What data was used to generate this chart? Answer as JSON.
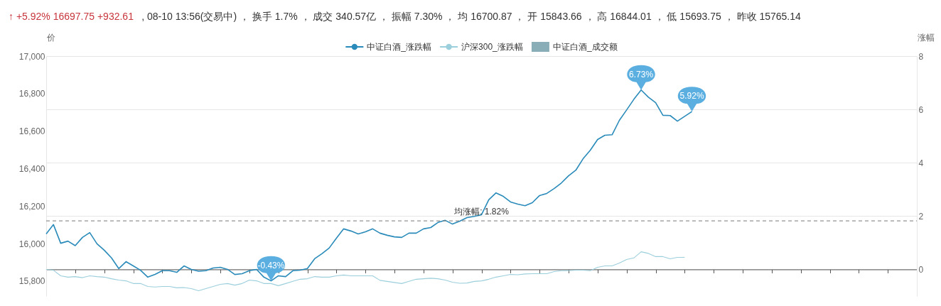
{
  "chart_data": {
    "type": "line",
    "ylabel": "价",
    "y2label": "涨幅",
    "annotations": [
      "↑ +5.92% 16697.75 +932.61",
      ", 08-10 13:56(交易中) ， 换手 1.7% ， 成交 340.57亿 ， 振幅 7.30% ， 均 16700.87 ， 开 15843.66 ， 高 16844.01 ， 低 15693.75 ， 昨收 15765.14"
    ],
    "categories": [
      null,
      null,
      null,
      null,
      null,
      null,
      null,
      null,
      null,
      null,
      null,
      null,
      null,
      null,
      null,
      null,
      null,
      null,
      null,
      null,
      null,
      null,
      null,
      null,
      null,
      null,
      null,
      null,
      null,
      null,
      null,
      null,
      null,
      null,
      null,
      null,
      null,
      null,
      null,
      null,
      null,
      null,
      null,
      null,
      null,
      null,
      null,
      null,
      null,
      null,
      null,
      null,
      null,
      null,
      null,
      null,
      null,
      null,
      null,
      null,
      null,
      null,
      null,
      null,
      null,
      null,
      null,
      null,
      null,
      null,
      null,
      null,
      null,
      null,
      null,
      null,
      null,
      null,
      null,
      null,
      null,
      null,
      null,
      null,
      null,
      null,
      null,
      null,
      null,
      null,
      null,
      null,
      null,
      null,
      null,
      null,
      null,
      null,
      null,
      null,
      null,
      null,
      null,
      null,
      null,
      null,
      null,
      null,
      null,
      null,
      null,
      null,
      null,
      null,
      null,
      null,
      null,
      null,
      null,
      null,
      null
    ],
    "series": [
      {
        "name": "中证白酒_涨跌幅",
        "axis": "y2",
        "color": "#2a8bba",
        "value_labels": [
          null,
          null,
          null,
          null,
          null,
          null,
          null,
          null,
          null,
          null,
          null,
          null,
          null,
          null,
          null,
          null,
          null,
          null,
          null,
          null,
          null,
          null,
          null,
          null,
          null,
          null,
          null,
          null,
          null,
          null,
          null,
          "-0.43%",
          null,
          null,
          null,
          null,
          null,
          null,
          null,
          null,
          null,
          null,
          null,
          null,
          null,
          null,
          null,
          null,
          null,
          null,
          null,
          null,
          null,
          null,
          null,
          null,
          null,
          null,
          null,
          null,
          null,
          null,
          null,
          null,
          null,
          null,
          null,
          null,
          null,
          null,
          null,
          null,
          null,
          null,
          null,
          null,
          null,
          null,
          null,
          null,
          null,
          null,
          "6.73%",
          null,
          null,
          null,
          null,
          null,
          null,
          "5.92%",
          null,
          null,
          null,
          null,
          null,
          null,
          null,
          null,
          null,
          null,
          null,
          null,
          null,
          null,
          null,
          null,
          null,
          null,
          null,
          null,
          null,
          null,
          null,
          null,
          null,
          null,
          null,
          null,
          null,
          null,
          null
        ],
        "values": [
          1.33,
          1.68,
          0.98,
          1.06,
          0.89,
          1.2,
          1.38,
          0.96,
          0.72,
          0.43,
          0.03,
          0.29,
          0.13,
          -0.03,
          -0.29,
          -0.19,
          -0.05,
          -0.05,
          -0.11,
          0.13,
          0,
          -0.07,
          -0.05,
          0.05,
          0.08,
          0,
          -0.19,
          -0.16,
          -0.05,
          0,
          -0.29,
          -0.43,
          -0.24,
          -0.27,
          -0.05,
          -0.03,
          0.03,
          0.4,
          0.59,
          0.8,
          1.17,
          1.52,
          1.44,
          1.33,
          1.41,
          1.52,
          1.36,
          1.28,
          1.22,
          1.2,
          1.36,
          1.36,
          1.52,
          1.57,
          1.76,
          1.84,
          1.7,
          1.81,
          1.94,
          1.99,
          2.05,
          2.61,
          2.87,
          2.74,
          2.53,
          2.45,
          2.39,
          2.5,
          2.77,
          2.85,
          3.03,
          3.24,
          3.51,
          3.72,
          4.15,
          4.47,
          4.87,
          5.03,
          5.05,
          5.59,
          5.98,
          6.38,
          6.73,
          6.46,
          6.25,
          5.78,
          5.77,
          5.56,
          5.74,
          5.92,
          null,
          null,
          null,
          null,
          null,
          null,
          null,
          null,
          null,
          null,
          null,
          null,
          null,
          null,
          null,
          null,
          null,
          null,
          null,
          null,
          null,
          null,
          null,
          null,
          null,
          null,
          null,
          null,
          null,
          null,
          null
        ]
      },
      {
        "name": "沪深300_涨跌幅",
        "axis": "y2",
        "color": "#9ccfdc",
        "values": [
          0,
          -0.03,
          -0.24,
          -0.29,
          -0.27,
          -0.31,
          -0.24,
          -0.27,
          -0.29,
          -0.35,
          -0.4,
          -0.43,
          -0.53,
          -0.53,
          -0.64,
          -0.66,
          -0.64,
          -0.64,
          -0.69,
          -0.68,
          -0.72,
          -0.8,
          -0.72,
          -0.64,
          -0.56,
          -0.53,
          -0.59,
          -0.53,
          -0.4,
          -0.43,
          -0.53,
          -0.53,
          -0.61,
          -0.53,
          -0.45,
          -0.37,
          -0.35,
          -0.27,
          -0.29,
          -0.29,
          -0.24,
          -0.21,
          -0.24,
          -0.24,
          -0.24,
          -0.24,
          -0.41,
          -0.45,
          -0.49,
          -0.53,
          -0.45,
          -0.37,
          -0.35,
          -0.33,
          -0.35,
          -0.4,
          -0.48,
          -0.52,
          -0.51,
          -0.45,
          -0.43,
          -0.37,
          -0.29,
          -0.24,
          -0.19,
          -0.2,
          -0.17,
          -0.16,
          -0.16,
          -0.16,
          -0.08,
          -0.05,
          -0.05,
          -0.03,
          -0.03,
          -0.05,
          0.08,
          0.13,
          0.13,
          0.24,
          0.37,
          0.43,
          0.66,
          0.6,
          0.48,
          0.48,
          0.4,
          0.45,
          0.45,
          null,
          null,
          null,
          null,
          null,
          null,
          null,
          null,
          null,
          null,
          null,
          null,
          null,
          null,
          null,
          null,
          null,
          null,
          null,
          null,
          null,
          null,
          null,
          null,
          null,
          null,
          null,
          null,
          null,
          null,
          null,
          null
        ]
      },
      {
        "name": "中证白酒_成交额",
        "type": "bar",
        "color": "#8aaeb8",
        "values": [
          null,
          null,
          null,
          null,
          null,
          null,
          null,
          null,
          null,
          null,
          null,
          null,
          null,
          null,
          null,
          null,
          null,
          null,
          null,
          null,
          null,
          null,
          null,
          null,
          null,
          null,
          null,
          null,
          null,
          null,
          null,
          null,
          null,
          null,
          null,
          null,
          null,
          null,
          null,
          null,
          null,
          null,
          null,
          null,
          null,
          null,
          null,
          null,
          null,
          null,
          null,
          null,
          null,
          null,
          null,
          null,
          null,
          null,
          null,
          null,
          null,
          null,
          null,
          null,
          null,
          null,
          null,
          null,
          null,
          null,
          null,
          null,
          null,
          null,
          null,
          null,
          null,
          null,
          null,
          null,
          null,
          null,
          null,
          null,
          null,
          null,
          null,
          null,
          null,
          null,
          null,
          null,
          null,
          null,
          null,
          null,
          null,
          null,
          null,
          null,
          null,
          null,
          null,
          null,
          null,
          null,
          null,
          null,
          null,
          null,
          null,
          null,
          null,
          null,
          null,
          null,
          null,
          null,
          null,
          null,
          null
        ]
      }
    ],
    "ylim": [
      15720,
      17000
    ],
    "yticks": [
      {
        "value": 15800,
        "label": "15,800"
      },
      {
        "value": 16000,
        "label": "16,000"
      },
      {
        "value": 16200,
        "label": "16,200"
      },
      {
        "value": 16400,
        "label": "16,400"
      },
      {
        "value": 16600,
        "label": "16,600"
      },
      {
        "value": 16800,
        "label": "16,800"
      },
      {
        "value": 17000,
        "label": "17,000"
      }
    ],
    "y2lim": [
      -1,
      8
    ],
    "y2ticks": [
      0,
      2,
      4,
      6,
      8
    ],
    "ref_lines": [
      {
        "axis": "y2",
        "value": 1.82,
        "label": "均涨幅: 1.82%",
        "color": "#777777",
        "line_style": "dashed"
      }
    ],
    "grid": "y",
    "legend": "top",
    "tick_labels": "y"
  }
}
